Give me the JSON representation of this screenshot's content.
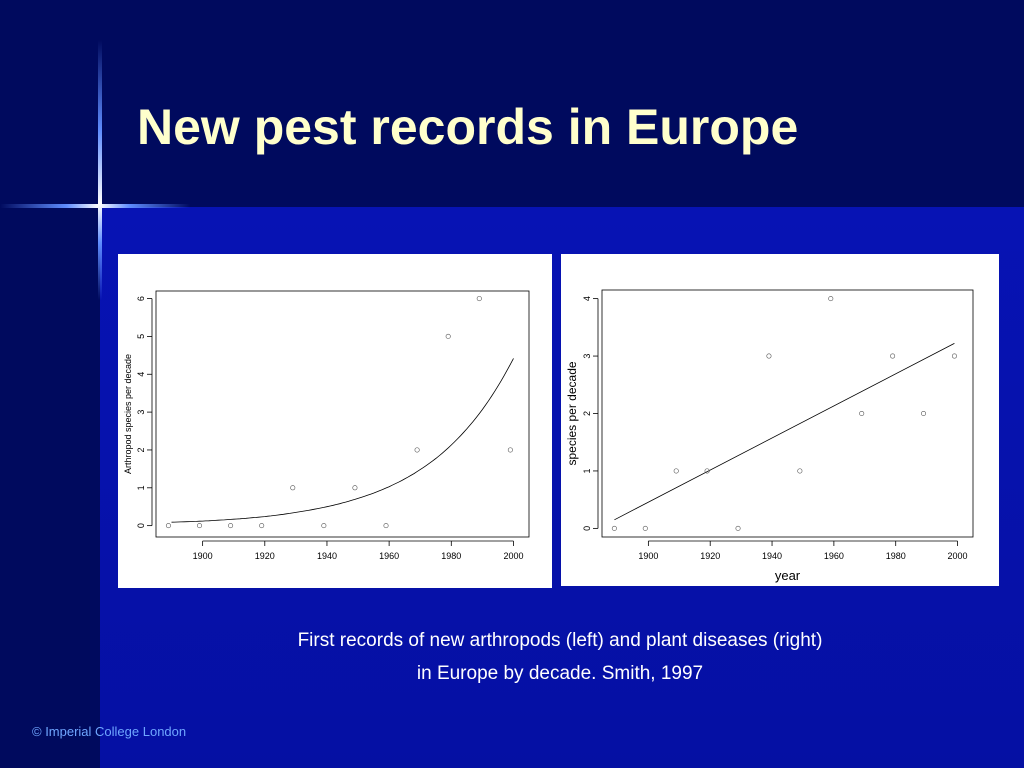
{
  "slide": {
    "title": "New pest records in Europe",
    "caption_line1": "First records of new arthropods (left) and plant diseases (right)",
    "caption_line2": "in Europe by decade.  Smith, 1997",
    "copyright": "© Imperial College London"
  },
  "colors": {
    "title": "#ffffcc",
    "background": "#000a5e",
    "content_background": "#0713b4",
    "copyright": "#6fa6ff"
  },
  "chart_data": [
    {
      "type": "scatter",
      "title": "",
      "xlabel": "",
      "ylabel": "Arthropod species per decade",
      "xlim": [
        1885,
        2005
      ],
      "ylim": [
        -0.3,
        6.2
      ],
      "xticks": [
        1900,
        1920,
        1940,
        1960,
        1980,
        2000
      ],
      "yticks": [
        0,
        1,
        2,
        3,
        4,
        5,
        6
      ],
      "grid": false,
      "legend": "none",
      "x": [
        1889,
        1899,
        1909,
        1919,
        1929,
        1939,
        1949,
        1959,
        1969,
        1979,
        1989,
        1999
      ],
      "y": [
        0,
        0,
        0,
        0,
        1,
        0,
        1,
        0,
        2,
        5,
        6,
        2
      ],
      "fit": {
        "type": "exponential",
        "x": [
          1890,
          1900,
          1910,
          1920,
          1930,
          1940,
          1950,
          1960,
          1970,
          1980,
          1990,
          2000
        ],
        "y": [
          0.09,
          0.12,
          0.17,
          0.24,
          0.35,
          0.5,
          0.72,
          1.03,
          1.48,
          2.13,
          3.07,
          4.42
        ]
      }
    },
    {
      "type": "scatter",
      "title": "",
      "xlabel": "year",
      "ylabel": "species per decade",
      "xlim": [
        1885,
        2005
      ],
      "ylim": [
        -0.15,
        4.15
      ],
      "xticks": [
        1900,
        1920,
        1940,
        1960,
        1980,
        2000
      ],
      "yticks": [
        0,
        1,
        2,
        3,
        4
      ],
      "grid": false,
      "legend": "none",
      "x": [
        1889,
        1899,
        1909,
        1919,
        1929,
        1939,
        1949,
        1959,
        1969,
        1979,
        1989,
        1999
      ],
      "y": [
        0,
        0,
        1,
        1,
        0,
        3,
        1,
        4,
        2,
        3,
        2,
        3
      ],
      "fit": {
        "type": "linear",
        "x": [
          1889,
          1999
        ],
        "y": [
          0.15,
          3.22
        ]
      }
    }
  ]
}
